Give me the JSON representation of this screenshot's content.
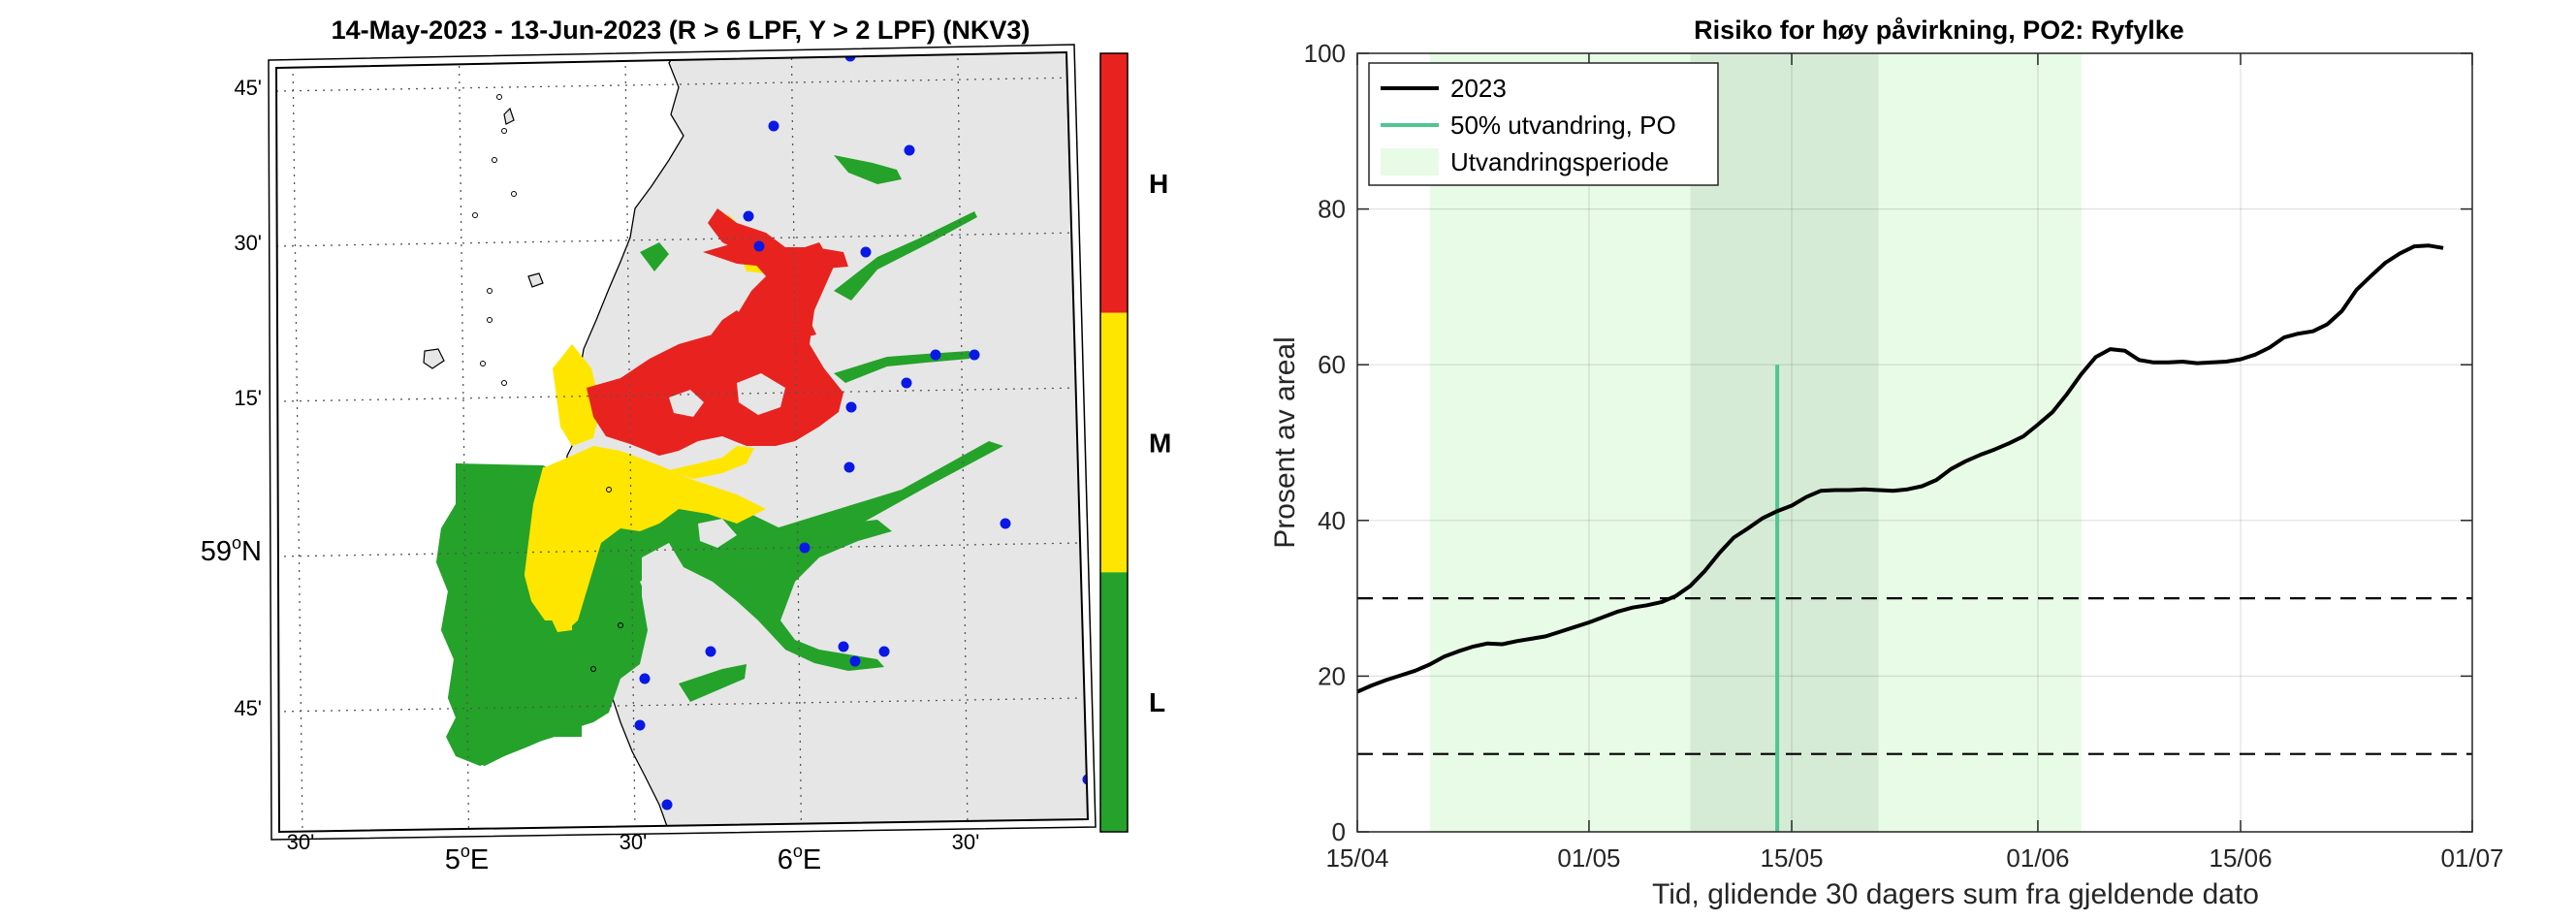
{
  "map_panel": {
    "title": "14-May-2023  - 13-Jun-2023  (R > 6 LPF, Y > 2 LPF) (NKV3)",
    "lat_ticks": [
      {
        "label": "45'",
        "lat": 59.75
      },
      {
        "label": "30'",
        "lat": 59.5
      },
      {
        "label": "15'",
        "lat": 59.25
      },
      {
        "label": "59",
        "deg": true,
        "suffix": "N",
        "lat": 59.0
      },
      {
        "label": "45'",
        "lat": 58.75
      }
    ],
    "lon_ticks": [
      {
        "label": "30'",
        "lon": 4.5
      },
      {
        "label": "5",
        "deg": true,
        "suffix": "E",
        "lon": 5.0
      },
      {
        "label": "30'",
        "lon": 5.5
      },
      {
        "label": "6",
        "deg": true,
        "suffix": "E",
        "lon": 6.0
      },
      {
        "label": "30'",
        "lon": 6.5
      }
    ],
    "colorbar": [
      {
        "label": "H",
        "color": "#e8231f"
      },
      {
        "label": "M",
        "color": "#ffe600"
      },
      {
        "label": "L",
        "color": "#25a22a"
      }
    ],
    "colors": {
      "land": "#e6e6e6",
      "sea": "#ffffff",
      "red": "#e8231f",
      "yellow": "#ffe600",
      "green": "#25a22a",
      "station": "#0a18e6"
    }
  },
  "chart_data": {
    "type": "line",
    "title": "Risiko for høy påvirkning, PO2: Ryfylke",
    "xlabel": "Tid, glidende 30 dagers sum fra gjeldende dato",
    "ylabel": "Prosent av areal",
    "ylim": [
      0,
      100
    ],
    "xlim": [
      "2023-04-15",
      "2023-07-01"
    ],
    "x_ticks": [
      "15/04",
      "01/05",
      "15/05",
      "01/06",
      "15/06",
      "01/07"
    ],
    "y_ticks": [
      0,
      20,
      40,
      60,
      80,
      100
    ],
    "grid": true,
    "legend_position": "top-left",
    "legend": [
      {
        "label": "2023",
        "kind": "line",
        "color": "#000000"
      },
      {
        "label": "50% utvandring, PO",
        "kind": "line",
        "color": "#4fc591"
      },
      {
        "label": "Utvandringsperiode",
        "kind": "patch",
        "color": "#e8fbe6"
      }
    ],
    "series": [
      {
        "name": "2023",
        "color": "#000000",
        "points": [
          [
            "2023-04-15",
            18.0
          ],
          [
            "2023-04-16",
            18.8
          ],
          [
            "2023-04-17",
            19.5
          ],
          [
            "2023-04-18",
            20.1
          ],
          [
            "2023-04-19",
            20.7
          ],
          [
            "2023-04-20",
            21.5
          ],
          [
            "2023-04-21",
            22.5
          ],
          [
            "2023-04-22",
            23.2
          ],
          [
            "2023-04-23",
            23.8
          ],
          [
            "2023-04-24",
            24.2
          ],
          [
            "2023-04-25",
            24.1
          ],
          [
            "2023-04-26",
            24.5
          ],
          [
            "2023-04-27",
            24.8
          ],
          [
            "2023-04-28",
            25.1
          ],
          [
            "2023-04-29",
            25.7
          ],
          [
            "2023-04-30",
            26.3
          ],
          [
            "2023-05-01",
            26.9
          ],
          [
            "2023-05-02",
            27.6
          ],
          [
            "2023-05-03",
            28.3
          ],
          [
            "2023-05-04",
            28.8
          ],
          [
            "2023-05-05",
            29.1
          ],
          [
            "2023-05-06",
            29.5
          ],
          [
            "2023-05-07",
            30.3
          ],
          [
            "2023-05-08",
            31.6
          ],
          [
            "2023-05-09",
            33.5
          ],
          [
            "2023-05-10",
            35.8
          ],
          [
            "2023-05-11",
            37.8
          ],
          [
            "2023-05-12",
            39.0
          ],
          [
            "2023-05-13",
            40.3
          ],
          [
            "2023-05-14",
            41.2
          ],
          [
            "2023-05-15",
            41.9
          ],
          [
            "2023-05-16",
            43.0
          ],
          [
            "2023-05-17",
            43.8
          ],
          [
            "2023-05-18",
            43.9
          ],
          [
            "2023-05-19",
            43.9
          ],
          [
            "2023-05-20",
            44.0
          ],
          [
            "2023-05-21",
            43.9
          ],
          [
            "2023-05-22",
            43.8
          ],
          [
            "2023-05-23",
            44.0
          ],
          [
            "2023-05-24",
            44.4
          ],
          [
            "2023-05-25",
            45.2
          ],
          [
            "2023-05-26",
            46.6
          ],
          [
            "2023-05-27",
            47.6
          ],
          [
            "2023-05-28",
            48.4
          ],
          [
            "2023-05-29",
            49.1
          ],
          [
            "2023-05-30",
            49.9
          ],
          [
            "2023-05-31",
            50.8
          ],
          [
            "2023-06-01",
            52.3
          ],
          [
            "2023-06-02",
            53.9
          ],
          [
            "2023-06-03",
            56.2
          ],
          [
            "2023-06-04",
            58.8
          ],
          [
            "2023-06-05",
            61.0
          ],
          [
            "2023-06-06",
            62.0
          ],
          [
            "2023-06-07",
            61.8
          ],
          [
            "2023-06-08",
            60.6
          ],
          [
            "2023-06-09",
            60.3
          ],
          [
            "2023-06-10",
            60.3
          ],
          [
            "2023-06-11",
            60.4
          ],
          [
            "2023-06-12",
            60.2
          ],
          [
            "2023-06-13",
            60.3
          ],
          [
            "2023-06-14",
            60.4
          ],
          [
            "2023-06-15",
            60.7
          ],
          [
            "2023-06-16",
            61.3
          ],
          [
            "2023-06-17",
            62.2
          ],
          [
            "2023-06-18",
            63.5
          ],
          [
            "2023-06-19",
            64.0
          ],
          [
            "2023-06-20",
            64.3
          ],
          [
            "2023-06-21",
            65.2
          ],
          [
            "2023-06-22",
            66.9
          ],
          [
            "2023-06-23",
            69.6
          ],
          [
            "2023-06-24",
            71.4
          ],
          [
            "2023-06-25",
            73.1
          ],
          [
            "2023-06-26",
            74.3
          ],
          [
            "2023-06-27",
            75.2
          ],
          [
            "2023-06-28",
            75.3
          ],
          [
            "2023-06-29",
            75.0
          ]
        ]
      }
    ],
    "reference_lines": [
      {
        "y": 30,
        "style": "dashed",
        "color": "#000000"
      },
      {
        "y": 10,
        "style": "dashed",
        "color": "#000000"
      }
    ],
    "marker_line": {
      "x": "2023-05-14",
      "y_top": 60,
      "color": "#4fc591"
    },
    "shaded_periods": [
      {
        "from": "2023-04-20",
        "to": "2023-06-04",
        "color": "#e8fbe6"
      },
      {
        "from": "2023-05-08",
        "to": "2023-05-21",
        "color": "#d6ebd6"
      }
    ]
  }
}
